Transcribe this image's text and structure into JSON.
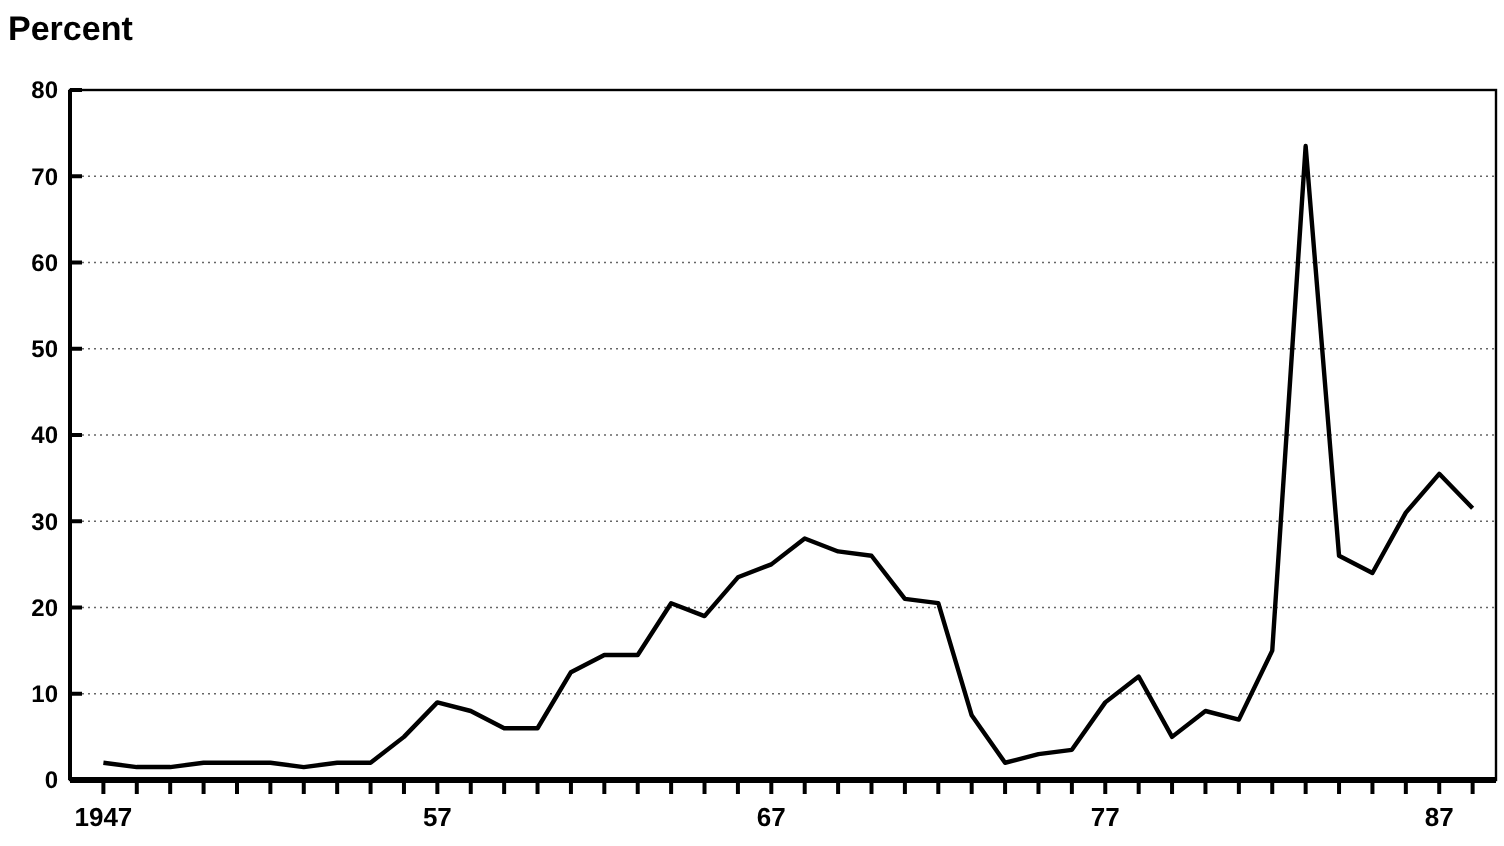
{
  "chart_data": {
    "type": "line",
    "title": "Percent",
    "x": [
      1947,
      1948,
      1949,
      1950,
      1951,
      1952,
      1953,
      1954,
      1955,
      1956,
      1957,
      1958,
      1959,
      1960,
      1961,
      1962,
      1963,
      1964,
      1965,
      1966,
      1967,
      1968,
      1969,
      1970,
      1971,
      1972,
      1973,
      1974,
      1975,
      1976,
      1977,
      1978,
      1979,
      1980,
      1981,
      1982,
      1983,
      1984,
      1985,
      1986,
      1987,
      1988
    ],
    "series": [
      {
        "color": "#000000",
        "values": [
          2,
          1.5,
          1.5,
          2,
          2,
          2,
          1.5,
          2,
          2,
          5,
          9,
          8,
          6,
          6,
          12.5,
          14.5,
          14.5,
          20.5,
          19,
          23.5,
          25,
          28,
          26.5,
          26,
          21,
          20.5,
          7.5,
          2,
          3,
          3.5,
          9,
          12,
          5,
          8,
          7,
          15,
          73.5,
          26,
          24,
          31,
          35.5,
          31.5
        ]
      }
    ],
    "xlim": [
      1946,
      1988.7
    ],
    "xticks": [
      {
        "value": 1947,
        "label": "1947"
      },
      {
        "value": 1948,
        "label": null
      },
      {
        "value": 1949,
        "label": null
      },
      {
        "value": 1950,
        "label": null
      },
      {
        "value": 1951,
        "label": null
      },
      {
        "value": 1952,
        "label": null
      },
      {
        "value": 1953,
        "label": null
      },
      {
        "value": 1954,
        "label": null
      },
      {
        "value": 1955,
        "label": null
      },
      {
        "value": 1956,
        "label": null
      },
      {
        "value": 1957,
        "label": "57"
      },
      {
        "value": 1958,
        "label": null
      },
      {
        "value": 1959,
        "label": null
      },
      {
        "value": 1960,
        "label": null
      },
      {
        "value": 1961,
        "label": null
      },
      {
        "value": 1962,
        "label": null
      },
      {
        "value": 1963,
        "label": null
      },
      {
        "value": 1964,
        "label": null
      },
      {
        "value": 1965,
        "label": null
      },
      {
        "value": 1966,
        "label": null
      },
      {
        "value": 1967,
        "label": "67"
      },
      {
        "value": 1968,
        "label": null
      },
      {
        "value": 1969,
        "label": null
      },
      {
        "value": 1970,
        "label": null
      },
      {
        "value": 1971,
        "label": null
      },
      {
        "value": 1972,
        "label": null
      },
      {
        "value": 1973,
        "label": null
      },
      {
        "value": 1974,
        "label": null
      },
      {
        "value": 1975,
        "label": null
      },
      {
        "value": 1976,
        "label": null
      },
      {
        "value": 1977,
        "label": "77"
      },
      {
        "value": 1978,
        "label": null
      },
      {
        "value": 1979,
        "label": null
      },
      {
        "value": 1980,
        "label": null
      },
      {
        "value": 1981,
        "label": null
      },
      {
        "value": 1982,
        "label": null
      },
      {
        "value": 1983,
        "label": null
      },
      {
        "value": 1984,
        "label": null
      },
      {
        "value": 1985,
        "label": null
      },
      {
        "value": 1986,
        "label": null
      },
      {
        "value": 1987,
        "label": "87"
      },
      {
        "value": 1988,
        "label": null
      }
    ],
    "ylim": [
      0,
      80
    ],
    "yticks": [
      0,
      10,
      20,
      30,
      40,
      50,
      60,
      70,
      80
    ],
    "grid": "y",
    "marker": "none",
    "line_style": "solid"
  }
}
